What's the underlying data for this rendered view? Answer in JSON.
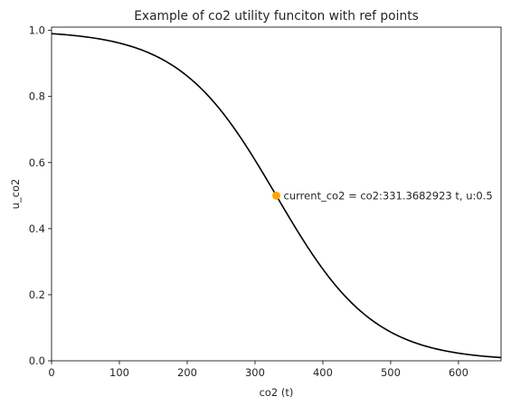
{
  "chart_data": {
    "type": "line",
    "title": "Example of co2 utility funciton with ref points",
    "xlabel": "co2 (t)",
    "ylabel": "u_co2",
    "xlim": [
      0,
      662.7365846
    ],
    "ylim": [
      0,
      1.01
    ],
    "xticks": [
      0,
      100,
      200,
      300,
      400,
      500,
      600
    ],
    "yticks": [
      0,
      0.2,
      0.4,
      0.6,
      0.8,
      1.0
    ],
    "xtick_labels": [
      "0",
      "100",
      "200",
      "300",
      "400",
      "500",
      "600"
    ],
    "ytick_labels": [
      "0.0",
      "0.2",
      "0.4",
      "0.6",
      "0.8",
      "1.0"
    ],
    "grid": false,
    "series": [
      {
        "color": "#000000",
        "function": "logistic",
        "midpoint": 331.3682923,
        "scale": 71.73,
        "x_range": [
          0,
          662.7365846
        ]
      }
    ],
    "points": [
      {
        "x": 331.3682923,
        "y": 0.5,
        "color": "#FFA500",
        "label": "current_co2 = co2:331.3682923 t, u:0.5"
      }
    ]
  }
}
